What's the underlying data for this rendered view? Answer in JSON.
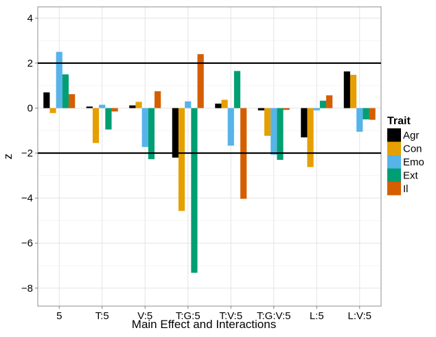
{
  "chart_data": {
    "type": "bar",
    "xlabel": "Main Effect and Interactions",
    "ylabel": "z",
    "ylim": [
      -8.8,
      4.5
    ],
    "yticks": [
      -8,
      -6,
      -4,
      -2,
      0,
      2,
      4
    ],
    "grid": true,
    "reference_lines": [
      2,
      -2
    ],
    "categories": [
      "5",
      "T:5",
      "V:5",
      "T:G:5",
      "T:V:5",
      "T:G:V:5",
      "L:5",
      "L:V:5"
    ],
    "legend": {
      "title": "Trait",
      "position": "right"
    },
    "series": [
      {
        "name": "Agr",
        "color": "#000000",
        "values": [
          0.7,
          0.07,
          0.12,
          -2.2,
          0.2,
          -0.1,
          -1.3,
          1.63
        ]
      },
      {
        "name": "Con",
        "color": "#E69F00",
        "values": [
          -0.22,
          -1.55,
          0.28,
          -4.57,
          0.37,
          -1.23,
          -2.62,
          1.48
        ]
      },
      {
        "name": "Emo",
        "color": "#56B4E9",
        "values": [
          2.5,
          0.15,
          -1.73,
          0.3,
          -1.67,
          -2.07,
          -0.1,
          -1.05
        ]
      },
      {
        "name": "Ext",
        "color": "#009E73",
        "values": [
          1.5,
          -0.95,
          -2.27,
          -7.32,
          1.65,
          -2.3,
          0.33,
          -0.5
        ]
      },
      {
        "name": "Il",
        "color": "#D55E00",
        "values": [
          0.62,
          -0.15,
          0.75,
          2.4,
          -4.03,
          -0.08,
          0.57,
          -0.52
        ]
      }
    ]
  }
}
